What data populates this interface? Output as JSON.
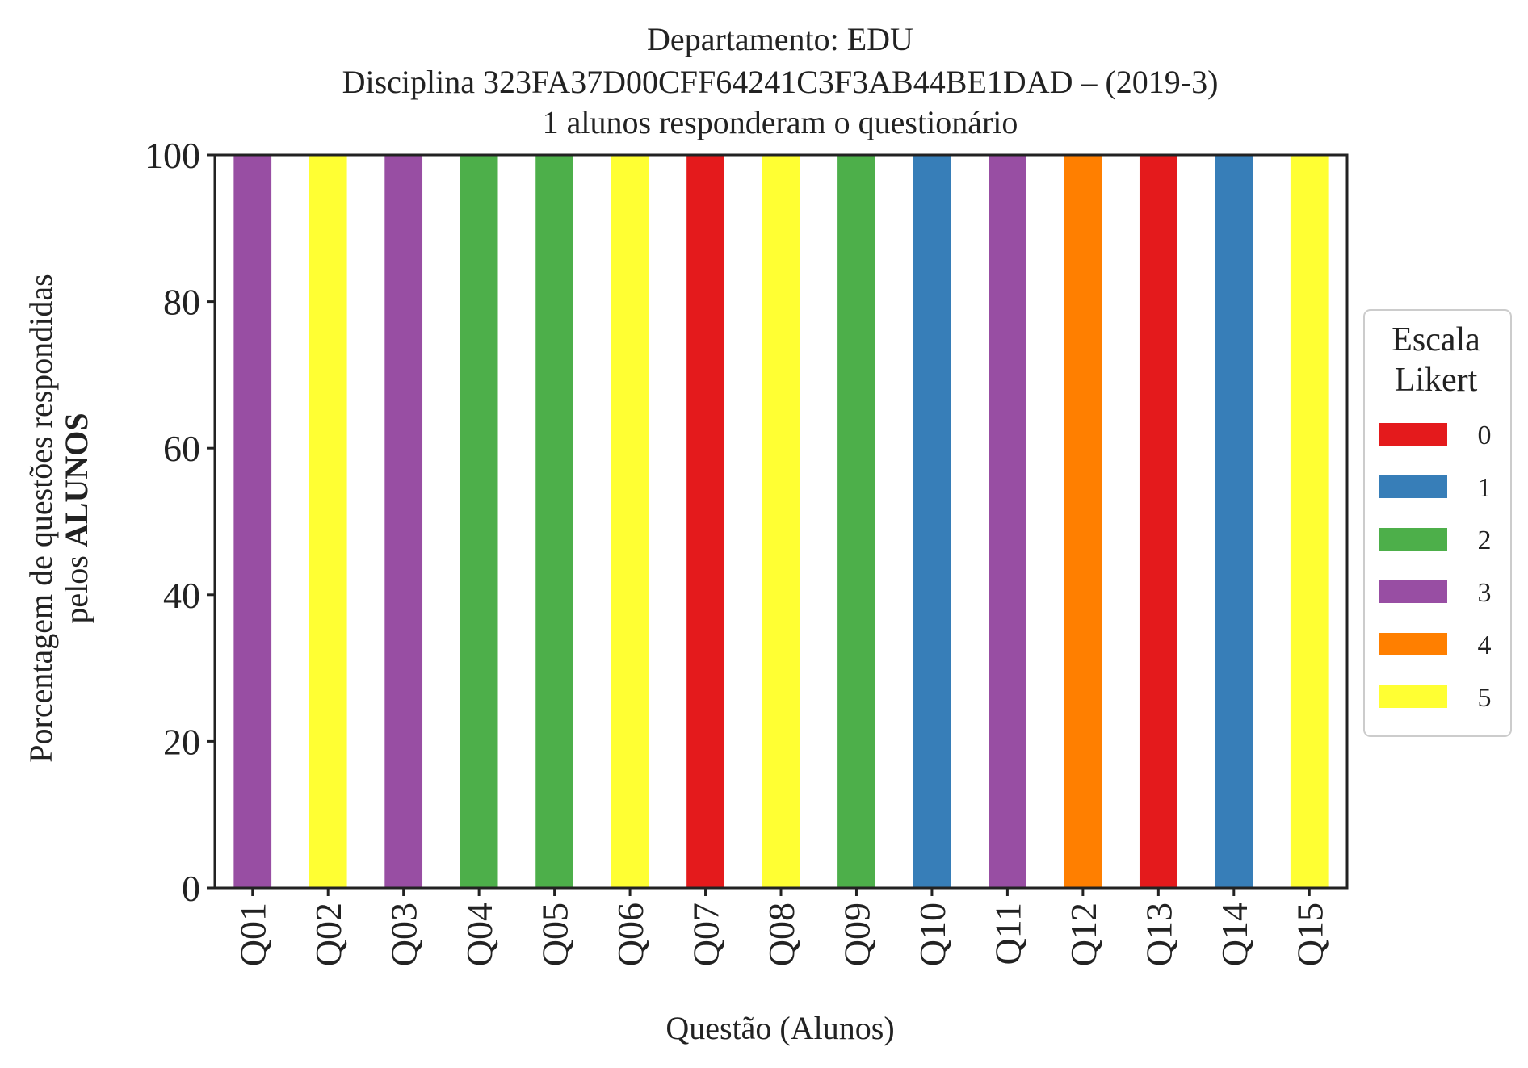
{
  "chart_data": {
    "type": "bar",
    "stacked": true,
    "title_lines": [
      "Departamento: EDU",
      "Disciplina 323FA37D00CFF64241C3F3AB44BE1DAD – (2019-3)",
      "1 alunos responderam o questionário"
    ],
    "xlabel": "Questão (Alunos)",
    "ylabel_line1": "Porcentagem de questões respondidas",
    "ylabel_line2_prefix": "pelos ",
    "ylabel_line2_bold": "ALUNOS",
    "ylim": [
      0,
      100
    ],
    "yticks": [
      "0",
      "20",
      "40",
      "60",
      "80",
      "100"
    ],
    "grid": false,
    "legend_position": "right-center",
    "legend_title_lines": [
      "Escala",
      "Likert"
    ],
    "categories": [
      "Q01",
      "Q02",
      "Q03",
      "Q04",
      "Q05",
      "Q06",
      "Q07",
      "Q08",
      "Q09",
      "Q10",
      "Q11",
      "Q12",
      "Q13",
      "Q14",
      "Q15"
    ],
    "series": [
      {
        "name": "0",
        "color": "#e41a1c",
        "values": [
          0,
          0,
          0,
          0,
          0,
          0,
          100,
          0,
          0,
          0,
          0,
          0,
          100,
          0,
          0
        ]
      },
      {
        "name": "1",
        "color": "#377eb8",
        "values": [
          0,
          0,
          0,
          0,
          0,
          0,
          0,
          0,
          0,
          100,
          0,
          0,
          0,
          100,
          0
        ]
      },
      {
        "name": "2",
        "color": "#4daf4a",
        "values": [
          0,
          0,
          0,
          100,
          100,
          0,
          0,
          0,
          100,
          0,
          0,
          0,
          0,
          0,
          0
        ]
      },
      {
        "name": "3",
        "color": "#984ea3",
        "values": [
          100,
          0,
          100,
          0,
          0,
          0,
          0,
          0,
          0,
          0,
          100,
          0,
          0,
          0,
          0
        ]
      },
      {
        "name": "4",
        "color": "#ff7f00",
        "values": [
          0,
          0,
          0,
          0,
          0,
          0,
          0,
          0,
          0,
          0,
          0,
          100,
          0,
          0,
          0
        ]
      },
      {
        "name": "5",
        "color": "#ffff33",
        "values": [
          0,
          100,
          0,
          0,
          0,
          100,
          0,
          100,
          0,
          0,
          0,
          0,
          0,
          0,
          100
        ]
      }
    ]
  }
}
